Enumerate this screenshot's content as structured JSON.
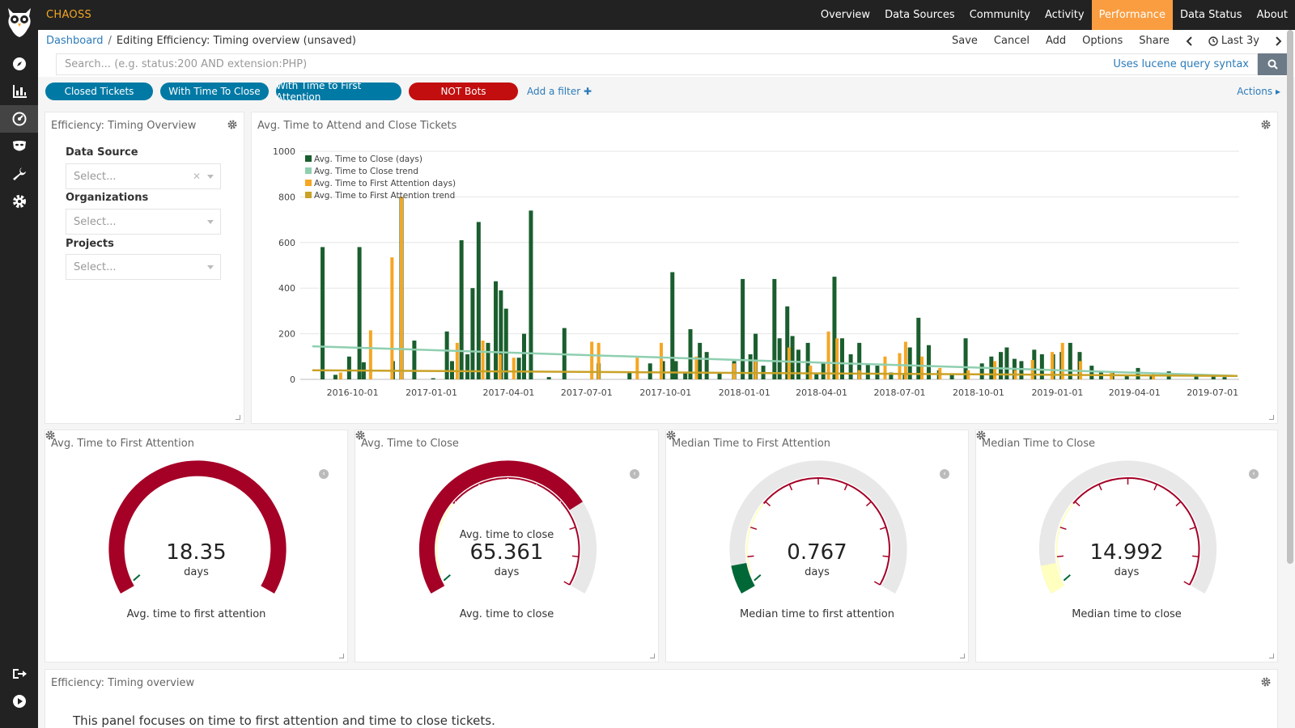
{
  "app": {
    "brand": "CHAOSS"
  },
  "topnav": [
    {
      "label": "Overview",
      "active": false
    },
    {
      "label": "Data Sources",
      "active": false
    },
    {
      "label": "Community",
      "active": false
    },
    {
      "label": "Activity",
      "active": false
    },
    {
      "label": "Performance",
      "active": true
    },
    {
      "label": "Data Status",
      "active": false
    },
    {
      "label": "About",
      "active": false
    }
  ],
  "breadcrumb": {
    "root": "Dashboard",
    "separator": "/",
    "current": "Editing Efficiency: Timing overview (unsaved)"
  },
  "toolbar": {
    "save": "Save",
    "cancel": "Cancel",
    "add": "Add",
    "options": "Options",
    "share": "Share",
    "time_range": "Last 3y"
  },
  "search": {
    "placeholder": "Search... (e.g. status:200 AND extension:PHP)",
    "value": "",
    "lucene_link": "Uses lucene query syntax"
  },
  "filters": [
    {
      "label": "Closed Tickets",
      "color": "#0079a5"
    },
    {
      "label": "With Time To Close",
      "color": "#0079a5"
    },
    {
      "label": "With Time to First Attention",
      "color": "#0079a5"
    },
    {
      "label": "NOT Bots",
      "color": "#c20e0e"
    }
  ],
  "add_filter": "Add a filter",
  "actions": "Actions",
  "controls_panel": {
    "title": "Efficiency: Timing Overview",
    "controls": [
      {
        "label": "Data Source",
        "placeholder": "Select...",
        "clearable": true
      },
      {
        "label": "Organizations",
        "placeholder": "Select...",
        "clearable": false
      },
      {
        "label": "Projects",
        "placeholder": "Select...",
        "clearable": false
      }
    ]
  },
  "chart_panel": {
    "title": "Avg. Time to Attend and Close Tickets"
  },
  "chart_data": {
    "type": "bar",
    "title": "Avg. Time to Attend and Close Tickets",
    "xlabel": "",
    "ylabel": "",
    "ylim": [
      0,
      1000
    ],
    "yticks": [
      0,
      200,
      400,
      600,
      800,
      1000
    ],
    "xticks": [
      "2016-10-01",
      "2017-01-01",
      "2017-04-01",
      "2017-07-01",
      "2017-10-01",
      "2018-01-01",
      "2018-04-01",
      "2018-07-01",
      "2018-10-01",
      "2019-01-01",
      "2019-04-01",
      "2019-07-01"
    ],
    "xrange": [
      "2016-08-01",
      "2019-08-01"
    ],
    "grid": true,
    "legend_position": "top-left",
    "series": [
      {
        "name": "Avg. Time to Close (days)",
        "type": "bar",
        "color": "#1a5e2e",
        "points": [
          [
            "2016-08-27",
            580
          ],
          [
            "2016-09-11",
            20
          ],
          [
            "2016-09-27",
            100
          ],
          [
            "2016-10-09",
            580
          ],
          [
            "2016-10-14",
            75
          ],
          [
            "2016-11-17",
            80
          ],
          [
            "2016-11-27",
            800
          ],
          [
            "2016-12-12",
            170
          ],
          [
            "2017-01-03",
            5
          ],
          [
            "2017-01-19",
            210
          ],
          [
            "2017-01-25",
            80
          ],
          [
            "2017-02-05",
            610
          ],
          [
            "2017-02-12",
            110
          ],
          [
            "2017-02-18",
            400
          ],
          [
            "2017-02-25",
            690
          ],
          [
            "2017-03-08",
            160
          ],
          [
            "2017-03-17",
            430
          ],
          [
            "2017-03-23",
            390
          ],
          [
            "2017-03-29",
            310
          ],
          [
            "2017-04-13",
            95
          ],
          [
            "2017-04-19",
            200
          ],
          [
            "2017-04-27",
            740
          ],
          [
            "2017-05-18",
            10
          ],
          [
            "2017-06-05",
            225
          ],
          [
            "2017-07-15",
            70
          ],
          [
            "2017-08-20",
            30
          ],
          [
            "2017-09-13",
            70
          ],
          [
            "2017-09-28",
            80
          ],
          [
            "2017-10-09",
            470
          ],
          [
            "2017-10-13",
            80
          ],
          [
            "2017-10-24",
            30
          ],
          [
            "2017-10-30",
            220
          ],
          [
            "2017-11-10",
            160
          ],
          [
            "2017-11-18",
            120
          ],
          [
            "2017-12-03",
            30
          ],
          [
            "2017-12-20",
            80
          ],
          [
            "2017-12-30",
            440
          ],
          [
            "2018-01-08",
            110
          ],
          [
            "2018-01-14",
            200
          ],
          [
            "2018-01-23",
            60
          ],
          [
            "2018-02-05",
            440
          ],
          [
            "2018-02-11",
            180
          ],
          [
            "2018-02-20",
            320
          ],
          [
            "2018-02-26",
            190
          ],
          [
            "2018-03-05",
            130
          ],
          [
            "2018-03-16",
            160
          ],
          [
            "2018-03-26",
            30
          ],
          [
            "2018-04-03",
            70
          ],
          [
            "2018-04-16",
            450
          ],
          [
            "2018-04-25",
            180
          ],
          [
            "2018-05-05",
            110
          ],
          [
            "2018-05-15",
            160
          ],
          [
            "2018-05-25",
            70
          ],
          [
            "2018-06-05",
            60
          ],
          [
            "2018-06-21",
            30
          ],
          [
            "2018-07-07",
            20
          ],
          [
            "2018-07-13",
            140
          ],
          [
            "2018-07-23",
            270
          ],
          [
            "2018-08-04",
            150
          ],
          [
            "2018-08-16",
            40
          ],
          [
            "2018-08-31",
            20
          ],
          [
            "2018-09-16",
            180
          ],
          [
            "2018-10-05",
            70
          ],
          [
            "2018-10-16",
            100
          ],
          [
            "2018-10-27",
            120
          ],
          [
            "2018-11-03",
            140
          ],
          [
            "2018-11-12",
            90
          ],
          [
            "2018-11-20",
            80
          ],
          [
            "2018-12-05",
            130
          ],
          [
            "2018-12-14",
            110
          ],
          [
            "2018-12-27",
            110
          ],
          [
            "2019-01-06",
            120
          ],
          [
            "2019-01-16",
            160
          ],
          [
            "2019-01-27",
            120
          ],
          [
            "2019-02-10",
            60
          ],
          [
            "2019-02-21",
            30
          ],
          [
            "2019-03-06",
            30
          ],
          [
            "2019-03-23",
            20
          ],
          [
            "2019-04-05",
            50
          ],
          [
            "2019-04-21",
            20
          ],
          [
            "2019-05-11",
            35
          ],
          [
            "2019-06-12",
            20
          ],
          [
            "2019-07-02",
            20
          ],
          [
            "2019-07-15",
            10
          ]
        ]
      },
      {
        "name": "Avg. Time to Close trend",
        "type": "line",
        "color": "#8fcfb0",
        "points": [
          [
            "2016-08-15",
            145
          ],
          [
            "2019-07-30",
            15
          ]
        ]
      },
      {
        "name": "Avg. Time to First Attention days)",
        "type": "bar",
        "color": "#f5a623",
        "points": [
          [
            "2016-09-17",
            30
          ],
          [
            "2016-10-22",
            215
          ],
          [
            "2016-11-16",
            535
          ],
          [
            "2016-11-27",
            800
          ],
          [
            "2017-01-31",
            160
          ],
          [
            "2017-03-02",
            170
          ],
          [
            "2017-03-22",
            110
          ],
          [
            "2017-04-07",
            95
          ],
          [
            "2017-07-07",
            165
          ],
          [
            "2017-07-15",
            160
          ],
          [
            "2017-08-29",
            95
          ],
          [
            "2017-09-26",
            160
          ],
          [
            "2017-11-06",
            100
          ],
          [
            "2017-12-20",
            70
          ],
          [
            "2018-01-14",
            80
          ],
          [
            "2018-02-22",
            140
          ],
          [
            "2018-03-19",
            60
          ],
          [
            "2018-04-09",
            210
          ],
          [
            "2018-04-19",
            180
          ],
          [
            "2018-05-15",
            40
          ],
          [
            "2018-06-14",
            100
          ],
          [
            "2018-07-01",
            115
          ],
          [
            "2018-07-08",
            165
          ],
          [
            "2018-07-27",
            100
          ],
          [
            "2018-08-17",
            50
          ],
          [
            "2018-09-19",
            40
          ],
          [
            "2018-10-20",
            80
          ],
          [
            "2018-11-13",
            40
          ],
          [
            "2018-12-03",
            85
          ],
          [
            "2018-12-26",
            120
          ],
          [
            "2019-01-07",
            160
          ],
          [
            "2019-01-28",
            80
          ],
          [
            "2019-03-05",
            30
          ],
          [
            "2019-04-23",
            30
          ]
        ]
      },
      {
        "name": "Avg. Time to First Attention trend",
        "type": "line",
        "color": "#c9a227",
        "points": [
          [
            "2016-08-15",
            40
          ],
          [
            "2019-07-30",
            15
          ]
        ]
      }
    ]
  },
  "gauges": [
    {
      "title": "Avg. Time to First Attention",
      "value": "18.35",
      "unit": "days",
      "subtitle": "",
      "label": "Avg. time to first attention",
      "fill_fraction": 1.0,
      "fill_color": "#a50026"
    },
    {
      "title": "Avg. Time to Close",
      "value": "65.361",
      "unit": "days",
      "subtitle": "Avg. time to close",
      "label": "Avg. time to close",
      "fill_fraction": 0.74,
      "fill_color": "#a50026"
    },
    {
      "title": "Median Time to First Attention",
      "value": "0.767",
      "unit": "days",
      "subtitle": "",
      "label": "Median time to first attention",
      "fill_fraction": 0.08,
      "fill_color": "#006837"
    },
    {
      "title": "Median Time to Close",
      "value": "14.992",
      "unit": "days",
      "subtitle": "",
      "label": "Median time to close",
      "fill_fraction": 0.08,
      "fill_color": "#ffffbf"
    }
  ],
  "markdown_panel": {
    "title": "Efficiency: Timing overview",
    "text": "This panel focuses on time to first attention and time to close tickets."
  }
}
